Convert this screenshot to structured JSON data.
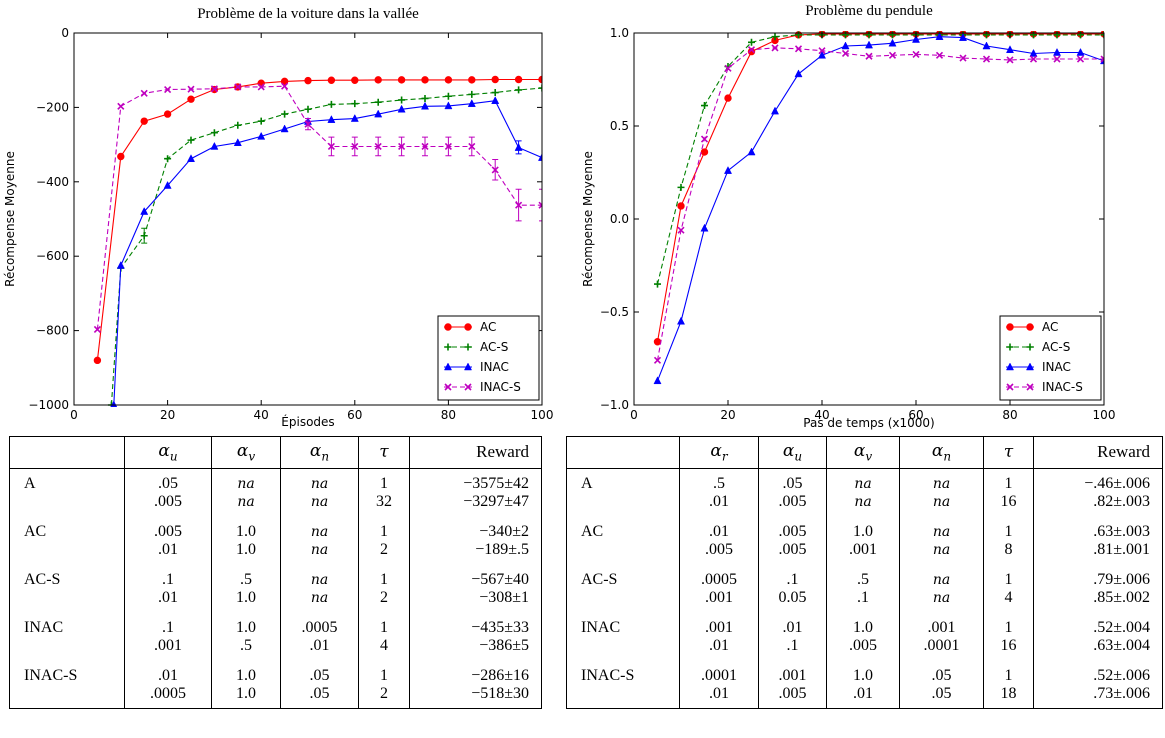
{
  "chart_data": [
    {
      "type": "line",
      "title": "Problème de la voiture dans la vallée",
      "xlabel": "Épisodes",
      "ylabel": "Récompense Moyenne",
      "xlim": [
        0,
        100
      ],
      "ylim": [
        -1000,
        0
      ],
      "xticks": [
        0,
        20,
        40,
        60,
        80,
        100
      ],
      "yticks": [
        -1000,
        -800,
        -600,
        -400,
        -200,
        0
      ],
      "xticklabels": [
        "0",
        "20",
        "40",
        "60",
        "80",
        "100"
      ],
      "yticklabels": [
        "−1000",
        "−800",
        "−600",
        "−400",
        "−200",
        "0"
      ],
      "legend_position": "bottom-right",
      "grid": false,
      "series": [
        {
          "name": "AC",
          "color": "#ff0000",
          "dash": "solid",
          "marker": "circle",
          "x": [
            5,
            10,
            15,
            20,
            25,
            30,
            35,
            40,
            45,
            50,
            55,
            60,
            65,
            70,
            75,
            80,
            85,
            90,
            95,
            100
          ],
          "y": [
            -880,
            -332,
            -237,
            -218,
            -178,
            -152,
            -145,
            -135,
            -130,
            -128,
            -127,
            -127,
            -126,
            -126,
            -126,
            -126,
            -126,
            -125,
            -125,
            -125
          ]
        },
        {
          "name": "AC-S",
          "color": "#008000",
          "dash": "dashed",
          "marker": "plus",
          "x": [
            8,
            10,
            15,
            20,
            25,
            30,
            35,
            40,
            45,
            50,
            55,
            60,
            65,
            70,
            75,
            80,
            85,
            90,
            95,
            100
          ],
          "y": [
            -1000,
            -632,
            -545,
            -338,
            -288,
            -268,
            -248,
            -237,
            -218,
            -205,
            -192,
            -190,
            -186,
            -180,
            -176,
            -170,
            -165,
            -160,
            -153,
            -148
          ]
        },
        {
          "name": "INAC",
          "color": "#0000ff",
          "dash": "solid",
          "marker": "triangle",
          "x": [
            8.5,
            10,
            15,
            20,
            25,
            30,
            35,
            40,
            45,
            50,
            55,
            60,
            65,
            70,
            75,
            80,
            85,
            90,
            95,
            100
          ],
          "y": [
            -1000,
            -625,
            -480,
            -410,
            -338,
            -305,
            -295,
            -278,
            -258,
            -238,
            -233,
            -230,
            -218,
            -205,
            -197,
            -196,
            -190,
            -182,
            -308,
            -335
          ]
        },
        {
          "name": "INAC-S",
          "color": "#bf00bf",
          "dash": "dashed",
          "marker": "x",
          "x": [
            5,
            10,
            15,
            20,
            25,
            30,
            35,
            40,
            45,
            50,
            55,
            60,
            65,
            70,
            75,
            80,
            85,
            90,
            95,
            100
          ],
          "y": [
            -797,
            -197,
            -162,
            -152,
            -151,
            -150,
            -145,
            -145,
            -143,
            -245,
            -305,
            -305,
            -305,
            -305,
            -305,
            -305,
            -305,
            -368,
            -463,
            -463
          ]
        }
      ]
    },
    {
      "type": "line",
      "title": "Problème du pendule",
      "xlabel": "Pas de temps (x1000)",
      "ylabel": "Récompense Moyenne",
      "xlim": [
        0,
        100
      ],
      "ylim": [
        -1.0,
        1.0
      ],
      "xticks": [
        0,
        20,
        40,
        60,
        80,
        100
      ],
      "yticks": [
        -1.0,
        -0.5,
        0.0,
        0.5,
        1.0
      ],
      "xticklabels": [
        "0",
        "20",
        "40",
        "60",
        "80",
        "100"
      ],
      "yticklabels": [
        "−1.0",
        "−0.5",
        "0.0",
        "0.5",
        "1.0"
      ],
      "legend_position": "bottom-right",
      "grid": false,
      "series": [
        {
          "name": "AC",
          "color": "#ff0000",
          "dash": "solid",
          "marker": "circle",
          "x": [
            5,
            10,
            15,
            20,
            25,
            30,
            35,
            40,
            45,
            50,
            55,
            60,
            65,
            70,
            75,
            80,
            85,
            90,
            95,
            100
          ],
          "y": [
            -0.66,
            0.07,
            0.36,
            0.65,
            0.9,
            0.96,
            0.99,
            0.995,
            0.995,
            0.995,
            0.995,
            0.995,
            0.995,
            0.995,
            0.995,
            0.995,
            0.995,
            0.995,
            0.995,
            0.995
          ]
        },
        {
          "name": "AC-S",
          "color": "#008000",
          "dash": "dashed",
          "marker": "plus",
          "x": [
            5,
            10,
            15,
            20,
            25,
            30,
            35,
            40,
            45,
            50,
            55,
            60,
            65,
            70,
            75,
            80,
            85,
            90,
            95,
            100
          ],
          "y": [
            -0.35,
            0.17,
            0.61,
            0.82,
            0.95,
            0.98,
            0.99,
            0.99,
            0.99,
            0.99,
            0.99,
            0.99,
            0.99,
            0.99,
            0.99,
            0.99,
            0.99,
            0.99,
            0.99,
            0.99
          ]
        },
        {
          "name": "INAC",
          "color": "#0000ff",
          "dash": "solid",
          "marker": "triangle",
          "x": [
            5,
            10,
            15,
            20,
            25,
            30,
            35,
            40,
            45,
            50,
            55,
            60,
            65,
            70,
            75,
            80,
            85,
            90,
            95,
            100
          ],
          "y": [
            -0.87,
            -0.55,
            -0.05,
            0.26,
            0.36,
            0.58,
            0.78,
            0.88,
            0.93,
            0.935,
            0.945,
            0.965,
            0.98,
            0.975,
            0.93,
            0.91,
            0.89,
            0.895,
            0.895,
            0.85
          ]
        },
        {
          "name": "INAC-S",
          "color": "#bf00bf",
          "dash": "dashed",
          "marker": "x",
          "x": [
            5,
            10,
            15,
            20,
            25,
            30,
            35,
            40,
            45,
            50,
            55,
            60,
            65,
            70,
            75,
            80,
            85,
            90,
            95,
            100
          ],
          "y": [
            -0.76,
            -0.06,
            0.43,
            0.81,
            0.91,
            0.92,
            0.915,
            0.905,
            0.89,
            0.875,
            0.88,
            0.885,
            0.88,
            0.865,
            0.86,
            0.855,
            0.86,
            0.86,
            0.86,
            0.86
          ]
        }
      ]
    }
  ],
  "errorbars": {
    "left": [
      {
        "series": "AC-S",
        "x": 15,
        "lo": -565,
        "hi": -525
      },
      {
        "series": "INAC-S",
        "x": 55,
        "lo": -330,
        "hi": -280
      },
      {
        "series": "INAC-S",
        "x": 60,
        "lo": -330,
        "hi": -280
      },
      {
        "series": "INAC-S",
        "x": 65,
        "lo": -330,
        "hi": -280
      },
      {
        "series": "INAC-S",
        "x": 70,
        "lo": -330,
        "hi": -280
      },
      {
        "series": "INAC-S",
        "x": 75,
        "lo": -330,
        "hi": -280
      },
      {
        "series": "INAC-S",
        "x": 80,
        "lo": -330,
        "hi": -280
      },
      {
        "series": "INAC-S",
        "x": 85,
        "lo": -330,
        "hi": -280
      },
      {
        "series": "INAC-S",
        "x": 90,
        "lo": -395,
        "hi": -340
      },
      {
        "series": "INAC-S",
        "x": 95,
        "lo": -505,
        "hi": -420
      },
      {
        "series": "INAC-S",
        "x": 100,
        "lo": -505,
        "hi": -420
      },
      {
        "series": "INAC",
        "x": 95,
        "lo": -325,
        "hi": -290
      },
      {
        "series": "INAC-S",
        "x": 50,
        "lo": -260,
        "hi": -230
      }
    ],
    "right": []
  },
  "tables": [
    {
      "headers": [
        "",
        "α_u",
        "α_v",
        "α_n",
        "τ",
        "Reward"
      ],
      "groups": [
        {
          "name": "A",
          "rows": [
            [
              ".05",
              "na",
              "na",
              "1",
              "−3575±42"
            ],
            [
              ".005",
              "na",
              "na",
              "32",
              "−3297±47"
            ]
          ]
        },
        {
          "name": "AC",
          "rows": [
            [
              ".005",
              "1.0",
              "na",
              "1",
              "−340±2"
            ],
            [
              ".01",
              "1.0",
              "na",
              "2",
              "−189±.5"
            ]
          ]
        },
        {
          "name": "AC-S",
          "rows": [
            [
              ".1",
              ".5",
              "na",
              "1",
              "−567±40"
            ],
            [
              ".01",
              "1.0",
              "na",
              "2",
              "−308±1"
            ]
          ]
        },
        {
          "name": "INAC",
          "rows": [
            [
              ".1",
              "1.0",
              ".0005",
              "1",
              "−435±33"
            ],
            [
              ".001",
              ".5",
              ".01",
              "4",
              "−386±5"
            ]
          ]
        },
        {
          "name": "INAC-S",
          "rows": [
            [
              ".01",
              "1.0",
              ".05",
              "1",
              "−286±16"
            ],
            [
              ".0005",
              "1.0",
              ".05",
              "2",
              "−518±30"
            ]
          ]
        }
      ]
    },
    {
      "headers": [
        "",
        "α_r",
        "α_u",
        "α_v",
        "α_n",
        "τ",
        "Reward"
      ],
      "groups": [
        {
          "name": "A",
          "rows": [
            [
              ".5",
              ".05",
              "na",
              "na",
              "1",
              "−.46±.006"
            ],
            [
              ".01",
              ".005",
              "na",
              "na",
              "16",
              ".82±.003"
            ]
          ]
        },
        {
          "name": "AC",
          "rows": [
            [
              ".01",
              ".005",
              "1.0",
              "na",
              "1",
              ".63±.003"
            ],
            [
              ".005",
              ".005",
              ".001",
              "na",
              "8",
              ".81±.001"
            ]
          ]
        },
        {
          "name": "AC-S",
          "rows": [
            [
              ".0005",
              ".1",
              ".5",
              "na",
              "1",
              ".79±.006"
            ],
            [
              ".001",
              "0.05",
              ".1",
              "na",
              "4",
              ".85±.002"
            ]
          ]
        },
        {
          "name": "INAC",
          "rows": [
            [
              ".001",
              ".01",
              "1.0",
              ".001",
              "1",
              ".52±.004"
            ],
            [
              ".01",
              ".1",
              ".005",
              ".0001",
              "16",
              ".63±.004"
            ]
          ]
        },
        {
          "name": "INAC-S",
          "rows": [
            [
              ".0001",
              ".001",
              "1.0",
              ".05",
              "1",
              ".52±.006"
            ],
            [
              ".01",
              ".005",
              ".01",
              ".05",
              "18",
              ".73±.006"
            ]
          ]
        }
      ]
    }
  ]
}
